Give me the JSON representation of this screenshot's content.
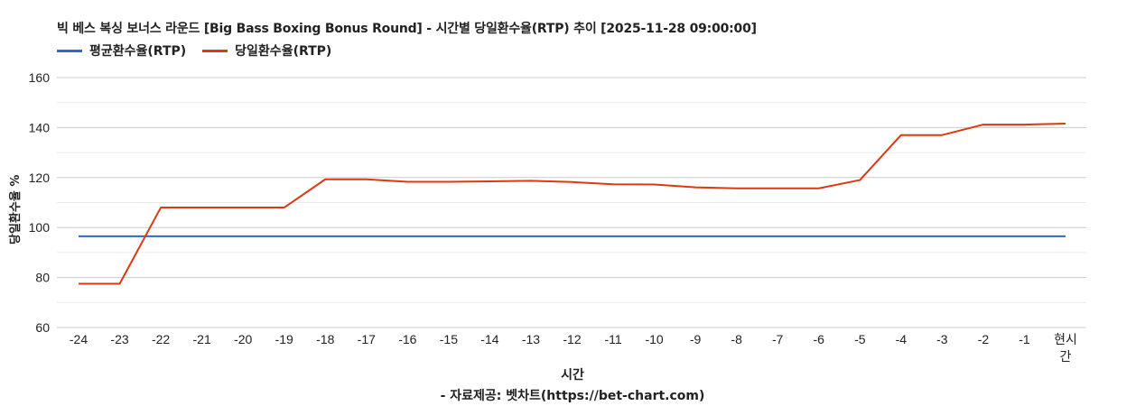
{
  "title": "빅 베스 복싱 보너스 라운드 [Big Bass Boxing Bonus Round] - 시간별 당일환수율(RTP) 추이 [2025-11-28 09:00:00]",
  "legend": [
    {
      "label": "평균환수율(RTP)",
      "color": "#3366cc"
    },
    {
      "label": "당일환수율(RTP)",
      "color": "#dc3912"
    }
  ],
  "axes": {
    "y_title": "당일환수율 %",
    "x_title": "시간",
    "credit": "- 자료제공: 벳차트(https://bet-chart.com)"
  },
  "chart_data": {
    "type": "line",
    "title": "빅 베스 복싱 보너스 라운드 [Big Bass Boxing Bonus Round] - 시간별 당일환수율(RTP) 추이 [2025-11-28 09:00:00]",
    "xlabel": "시간",
    "ylabel": "당일환수율 %",
    "ylim": [
      60,
      160
    ],
    "yticks": [
      60,
      80,
      100,
      120,
      140,
      160
    ],
    "grid": true,
    "legend_position": "top",
    "categories": [
      "-24",
      "-23",
      "-22",
      "-21",
      "-20",
      "-19",
      "-18",
      "-17",
      "-16",
      "-15",
      "-14",
      "-13",
      "-12",
      "-11",
      "-10",
      "-9",
      "-8",
      "-7",
      "-6",
      "-5",
      "-4",
      "-3",
      "-2",
      "-1",
      "현시간"
    ],
    "series": [
      {
        "name": "평균환수율(RTP)",
        "color": "#3366cc",
        "values": [
          96.5,
          96.5,
          96.5,
          96.5,
          96.5,
          96.5,
          96.5,
          96.5,
          96.5,
          96.5,
          96.5,
          96.5,
          96.5,
          96.5,
          96.5,
          96.5,
          96.5,
          96.5,
          96.5,
          96.5,
          96.5,
          96.5,
          96.5,
          96.5,
          96.5
        ]
      },
      {
        "name": "당일환수율(RTP)",
        "color": "#dc3912",
        "values": [
          77.5,
          77.5,
          108.0,
          108.0,
          108.0,
          108.0,
          119.3,
          119.3,
          118.3,
          118.3,
          118.5,
          118.7,
          118.2,
          117.3,
          117.2,
          116.1,
          115.7,
          115.7,
          115.7,
          119.0,
          137.0,
          137.0,
          141.2,
          141.2,
          141.6
        ]
      }
    ]
  }
}
